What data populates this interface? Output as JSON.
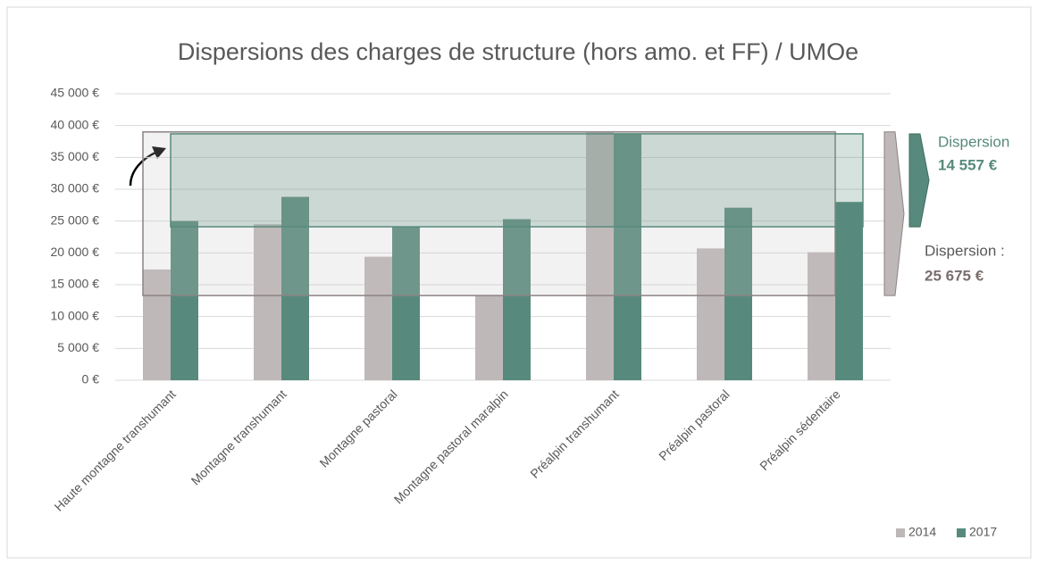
{
  "chart_data": {
    "type": "bar",
    "title": "Dispersions des charges de structure (hors amo. et FF) / UMOe",
    "categories": [
      "Haute montagne transhumant",
      "Montagne transhumant",
      "Montagne pastoral",
      "Montagne pastoral maralpin",
      "Préalpin transhumant",
      "Préalpin pastoral",
      "Préalpin sédentaire"
    ],
    "series": [
      {
        "name": "2014",
        "color": "#bfb8b8",
        "values": [
          17400,
          24500,
          19400,
          13300,
          39000,
          20700,
          20100
        ]
      },
      {
        "name": "2017",
        "color": "#578a7c",
        "values": [
          25000,
          28800,
          24100,
          25300,
          38700,
          27100,
          28000
        ]
      }
    ],
    "ylim": [
      0,
      45000
    ],
    "yticks": [
      {
        "value": 0,
        "label": "0 €"
      },
      {
        "value": 5000,
        "label": "5 000 €"
      },
      {
        "value": 10000,
        "label": "10 000 €"
      },
      {
        "value": 15000,
        "label": "15 000 €"
      },
      {
        "value": 20000,
        "label": "20 000 €"
      },
      {
        "value": 25000,
        "label": "25 000 €"
      },
      {
        "value": 30000,
        "label": "30 000 €"
      },
      {
        "value": 35000,
        "label": "35 000 €"
      },
      {
        "value": 40000,
        "label": "40 000 €"
      },
      {
        "value": 45000,
        "label": "45 000 €"
      }
    ],
    "grid": true,
    "legend": "bottom-right",
    "annotations": {
      "label_2017": "Dispersion",
      "value_2017": "14 557 €",
      "label_2014": "Dispersion :",
      "value_2014": "25 675 €"
    }
  }
}
